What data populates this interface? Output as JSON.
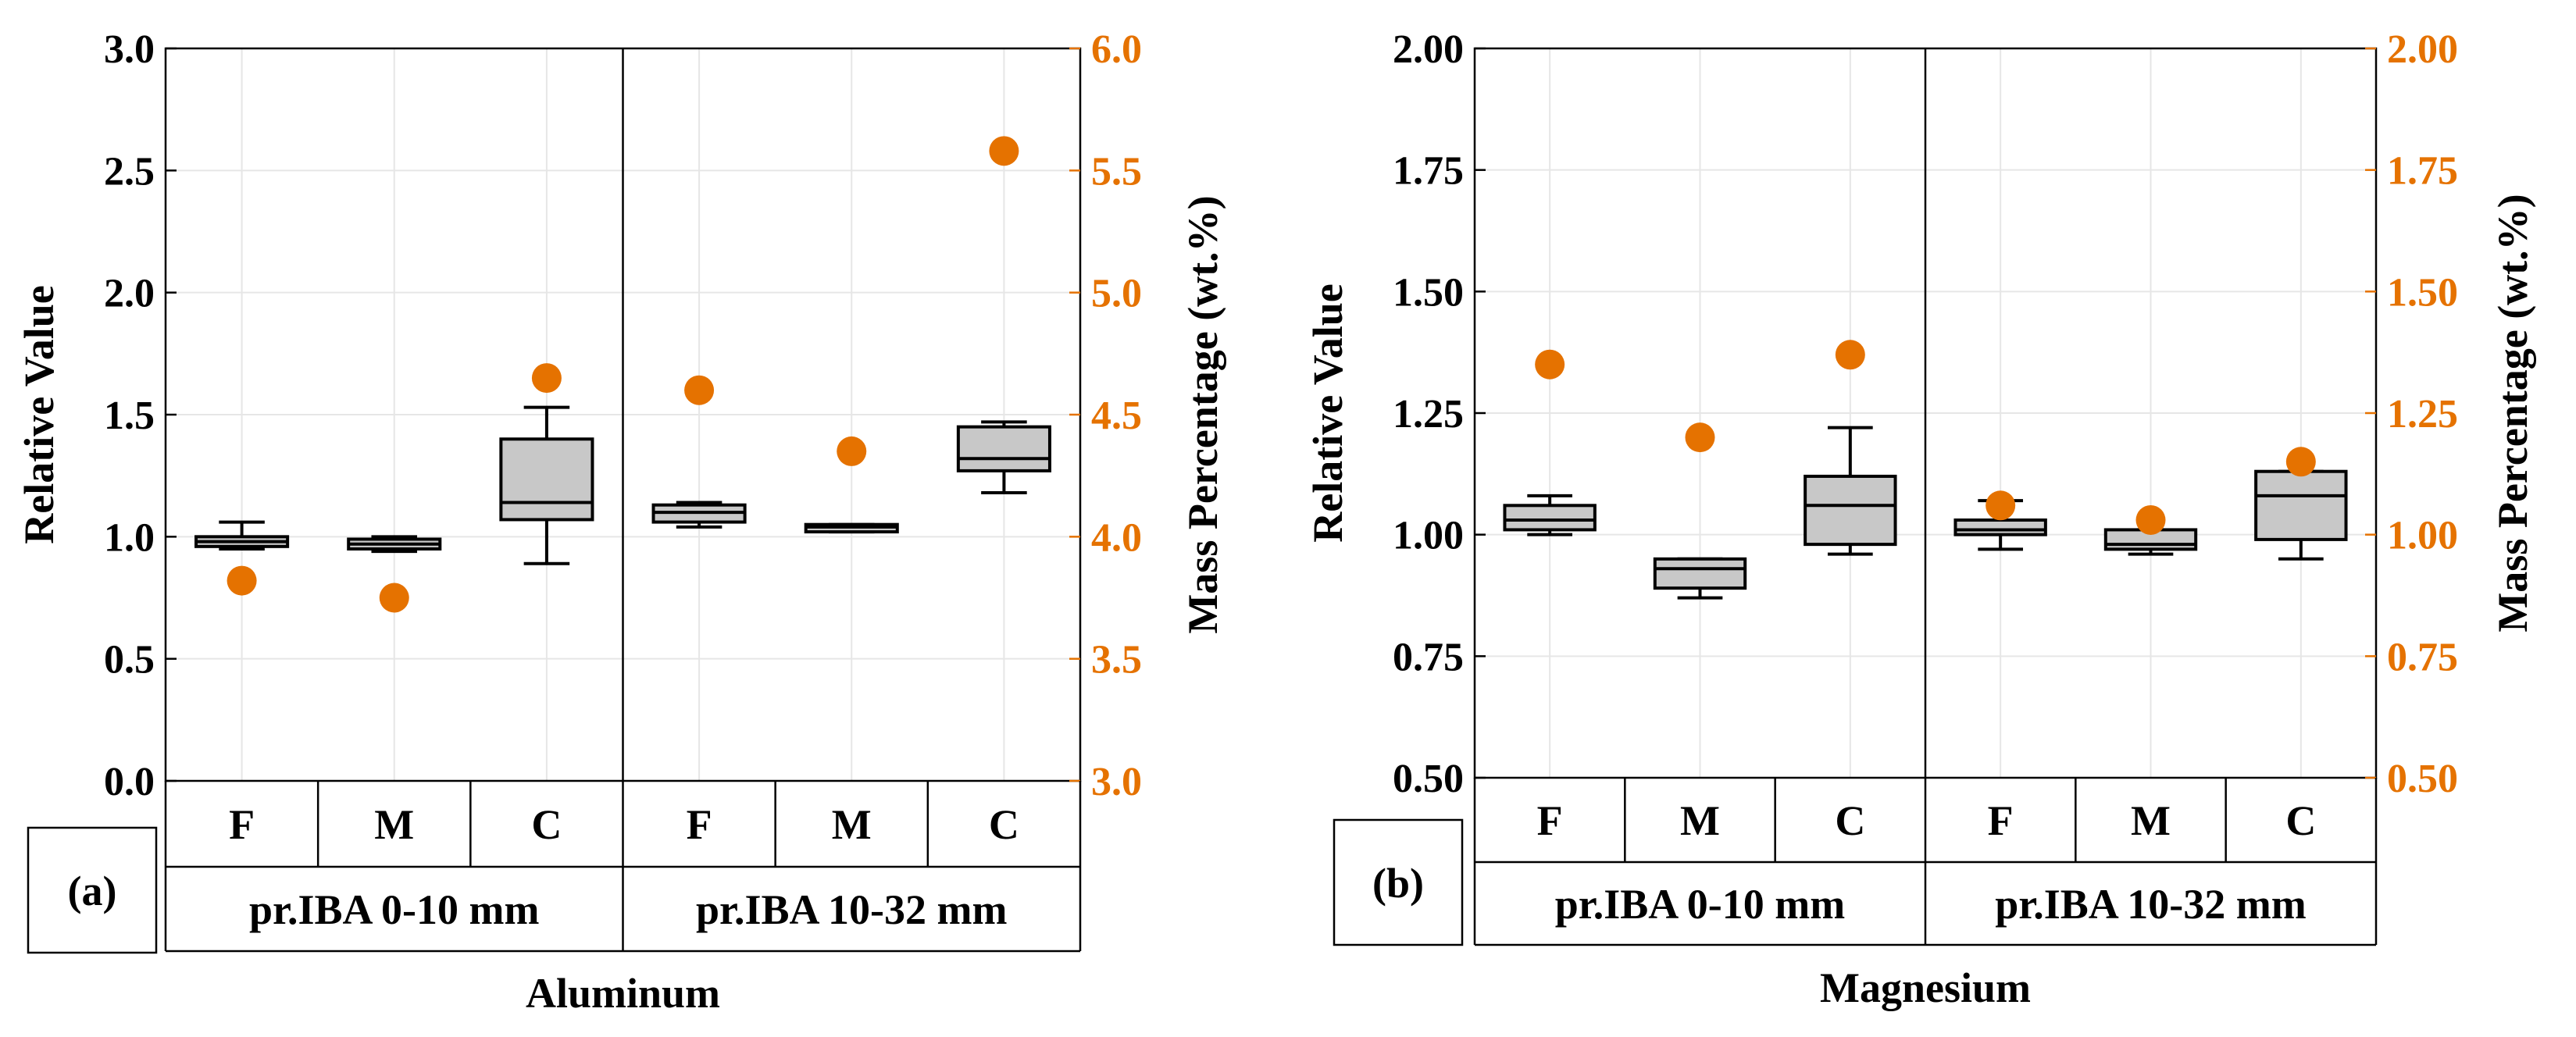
{
  "colors": {
    "axis": "#000000",
    "secondary": "#E57200",
    "box_fill": "#C8C8C8",
    "grid": "#E6E6E6"
  },
  "chart_data": [
    {
      "panel_label": "(a)",
      "type": "box",
      "title": "Aluminum",
      "ylabel_left": "Relative Value",
      "ylabel_right": "Mass Percentage (wt.%)",
      "ylim_left": [
        0.0,
        3.0
      ],
      "ylim_right": [
        3.0,
        6.0
      ],
      "yticks_left": [
        "0.0",
        "0.5",
        "1.0",
        "1.5",
        "2.0",
        "2.5",
        "3.0"
      ],
      "yticks_right": [
        "3.0",
        "3.5",
        "4.0",
        "4.5",
        "5.0",
        "5.5",
        "6.0"
      ],
      "groups": [
        "pr.IBA 0-10 mm",
        "pr.IBA 10-32 mm"
      ],
      "categories": [
        {
          "label": "F",
          "group": 0,
          "whisker_low": 0.95,
          "q1": 0.96,
          "median": 0.98,
          "q3": 1.0,
          "whisker_high": 1.06,
          "mass": 3.82
        },
        {
          "label": "M",
          "group": 0,
          "whisker_low": 0.94,
          "q1": 0.95,
          "median": 0.97,
          "q3": 0.99,
          "whisker_high": 1.0,
          "mass": 3.75
        },
        {
          "label": "C",
          "group": 0,
          "whisker_low": 0.89,
          "q1": 1.07,
          "median": 1.14,
          "q3": 1.4,
          "whisker_high": 1.53,
          "mass": 4.65
        },
        {
          "label": "F",
          "group": 1,
          "whisker_low": 1.04,
          "q1": 1.06,
          "median": 1.1,
          "q3": 1.13,
          "whisker_high": 1.14,
          "mass": 4.6
        },
        {
          "label": "M",
          "group": 1,
          "whisker_low": 1.02,
          "q1": 1.02,
          "median": 1.04,
          "q3": 1.05,
          "whisker_high": 1.05,
          "mass": 4.35
        },
        {
          "label": "C",
          "group": 1,
          "whisker_low": 1.18,
          "q1": 1.27,
          "median": 1.32,
          "q3": 1.45,
          "whisker_high": 1.47,
          "mass": 5.58
        }
      ]
    },
    {
      "panel_label": "(b)",
      "type": "box",
      "title": "Magnesium",
      "ylabel_left": "Relative Value",
      "ylabel_right": "Mass Percentage (wt.%)",
      "ylim_left": [
        0.5,
        2.0
      ],
      "ylim_right": [
        0.5,
        2.0
      ],
      "yticks_left": [
        "0.50",
        "0.75",
        "1.00",
        "1.25",
        "1.50",
        "1.75",
        "2.00"
      ],
      "yticks_right": [
        "0.50",
        "0.75",
        "1.00",
        "1.25",
        "1.50",
        "1.75",
        "2.00"
      ],
      "groups": [
        "pr.IBA 0-10 mm",
        "pr.IBA 10-32 mm"
      ],
      "categories": [
        {
          "label": "F",
          "group": 0,
          "whisker_low": 1.0,
          "q1": 1.01,
          "median": 1.03,
          "q3": 1.06,
          "whisker_high": 1.08,
          "mass": 1.35
        },
        {
          "label": "M",
          "group": 0,
          "whisker_low": 0.87,
          "q1": 0.89,
          "median": 0.93,
          "q3": 0.95,
          "whisker_high": 0.95,
          "mass": 1.2
        },
        {
          "label": "C",
          "group": 0,
          "whisker_low": 0.96,
          "q1": 0.98,
          "median": 1.06,
          "q3": 1.12,
          "whisker_high": 1.22,
          "mass": 1.37
        },
        {
          "label": "F",
          "group": 1,
          "whisker_low": 0.97,
          "q1": 1.0,
          "median": 1.01,
          "q3": 1.03,
          "whisker_high": 1.07,
          "mass": 1.06
        },
        {
          "label": "M",
          "group": 1,
          "whisker_low": 0.96,
          "q1": 0.97,
          "median": 0.98,
          "q3": 1.01,
          "whisker_high": 1.01,
          "mass": 1.03
        },
        {
          "label": "C",
          "group": 1,
          "whisker_low": 0.95,
          "q1": 0.99,
          "median": 1.08,
          "q3": 1.13,
          "whisker_high": 1.13,
          "mass": 1.15
        }
      ]
    }
  ]
}
